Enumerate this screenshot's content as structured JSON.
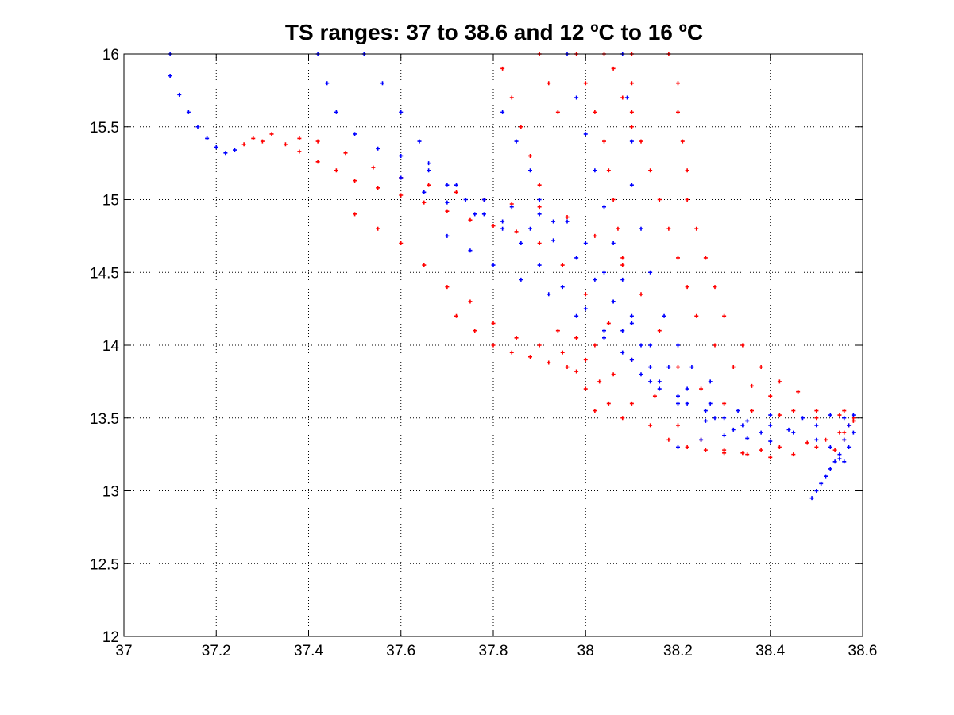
{
  "chart_data": {
    "type": "scatter",
    "title": "TS ranges: 37 to 38.6 and 12 ºC to 16 ºC",
    "xlabel": "",
    "ylabel": "",
    "xlim": [
      37,
      38.6
    ],
    "ylim": [
      12,
      16
    ],
    "grid": true,
    "x_ticks": [
      "37",
      "37.2",
      "37.4",
      "37.6",
      "37.8",
      "38",
      "38.2",
      "38.4",
      "38.6"
    ],
    "y_ticks": [
      "12",
      "12.5",
      "13",
      "13.5",
      "14",
      "14.5",
      "15",
      "15.5",
      "16"
    ],
    "colors": {
      "red_series": "#ff0000",
      "blue_series": "#0000ff",
      "grid": "#000000"
    },
    "series": [
      {
        "color": "#ff0000",
        "marker": "+",
        "points": [
          [
            37.26,
            15.38
          ],
          [
            37.28,
            15.42
          ],
          [
            37.3,
            15.4
          ],
          [
            37.32,
            15.45
          ],
          [
            37.35,
            15.38
          ],
          [
            37.38,
            15.33
          ],
          [
            37.42,
            15.26
          ],
          [
            37.46,
            15.2
          ],
          [
            37.5,
            15.13
          ],
          [
            37.55,
            15.08
          ],
          [
            37.6,
            15.03
          ],
          [
            37.65,
            14.98
          ],
          [
            37.7,
            14.92
          ],
          [
            37.75,
            14.86
          ],
          [
            37.8,
            14.82
          ],
          [
            37.85,
            14.78
          ],
          [
            37.9,
            14.7
          ],
          [
            37.95,
            14.55
          ],
          [
            38.0,
            14.35
          ],
          [
            38.05,
            14.15
          ],
          [
            38.1,
            13.9
          ],
          [
            38.15,
            13.65
          ],
          [
            38.2,
            13.45
          ],
          [
            38.25,
            13.35
          ],
          [
            38.3,
            13.28
          ],
          [
            38.35,
            13.25
          ],
          [
            38.4,
            13.23
          ],
          [
            38.45,
            13.25
          ],
          [
            38.5,
            13.3
          ],
          [
            38.55,
            13.4
          ],
          [
            38.58,
            13.5
          ],
          [
            37.38,
            15.42
          ],
          [
            37.42,
            15.4
          ],
          [
            37.48,
            15.32
          ],
          [
            37.54,
            15.22
          ],
          [
            37.6,
            15.15
          ],
          [
            37.66,
            15.1
          ],
          [
            37.72,
            15.05
          ],
          [
            37.78,
            15.0
          ],
          [
            37.84,
            14.97
          ],
          [
            37.9,
            14.95
          ],
          [
            37.96,
            14.88
          ],
          [
            38.02,
            14.75
          ],
          [
            38.08,
            14.55
          ],
          [
            38.12,
            14.35
          ],
          [
            38.16,
            14.1
          ],
          [
            38.2,
            13.85
          ],
          [
            38.25,
            13.7
          ],
          [
            38.3,
            13.6
          ],
          [
            38.36,
            13.55
          ],
          [
            38.42,
            13.52
          ],
          [
            38.5,
            13.5
          ],
          [
            38.56,
            13.55
          ],
          [
            37.5,
            14.9
          ],
          [
            37.55,
            14.8
          ],
          [
            37.6,
            14.7
          ],
          [
            37.65,
            14.55
          ],
          [
            37.7,
            14.4
          ],
          [
            37.75,
            14.3
          ],
          [
            37.8,
            14.15
          ],
          [
            37.85,
            14.05
          ],
          [
            37.9,
            14.0
          ],
          [
            37.95,
            13.95
          ],
          [
            38.0,
            13.9
          ],
          [
            38.03,
            13.75
          ],
          [
            38.05,
            13.6
          ],
          [
            38.08,
            13.5
          ],
          [
            37.72,
            14.2
          ],
          [
            37.76,
            14.1
          ],
          [
            37.8,
            14.0
          ],
          [
            37.84,
            13.95
          ],
          [
            37.88,
            13.92
          ],
          [
            37.92,
            13.88
          ],
          [
            37.96,
            13.85
          ],
          [
            37.98,
            13.82
          ],
          [
            38.0,
            13.7
          ],
          [
            38.02,
            13.55
          ],
          [
            38.1,
            16.0
          ],
          [
            38.1,
            15.8
          ],
          [
            38.1,
            15.6
          ],
          [
            38.12,
            15.4
          ],
          [
            38.14,
            15.2
          ],
          [
            38.16,
            15.0
          ],
          [
            38.18,
            14.8
          ],
          [
            38.2,
            14.6
          ],
          [
            38.22,
            14.4
          ],
          [
            38.24,
            14.2
          ],
          [
            38.28,
            14.0
          ],
          [
            38.32,
            13.85
          ],
          [
            38.36,
            13.72
          ],
          [
            38.4,
            13.65
          ],
          [
            38.18,
            16.0
          ],
          [
            38.2,
            15.8
          ],
          [
            38.2,
            15.6
          ],
          [
            38.21,
            15.4
          ],
          [
            38.22,
            15.2
          ],
          [
            38.22,
            15.0
          ],
          [
            38.24,
            14.8
          ],
          [
            38.26,
            14.6
          ],
          [
            38.28,
            14.4
          ],
          [
            38.3,
            14.2
          ],
          [
            38.34,
            14.0
          ],
          [
            38.38,
            13.85
          ],
          [
            38.42,
            13.75
          ],
          [
            38.46,
            13.68
          ],
          [
            37.98,
            16.0
          ],
          [
            38.0,
            15.8
          ],
          [
            38.02,
            15.6
          ],
          [
            38.04,
            15.4
          ],
          [
            38.05,
            15.2
          ],
          [
            38.06,
            15.0
          ],
          [
            38.07,
            14.8
          ],
          [
            38.08,
            14.6
          ],
          [
            37.82,
            15.9
          ],
          [
            37.84,
            15.7
          ],
          [
            37.86,
            15.5
          ],
          [
            37.88,
            15.3
          ],
          [
            37.9,
            15.1
          ],
          [
            37.9,
            16.0
          ],
          [
            37.92,
            15.8
          ],
          [
            37.94,
            15.6
          ],
          [
            38.04,
            16.0
          ],
          [
            38.06,
            15.9
          ],
          [
            38.08,
            15.7
          ],
          [
            38.1,
            15.5
          ],
          [
            37.94,
            14.1
          ],
          [
            37.98,
            14.05
          ],
          [
            38.02,
            14.0
          ],
          [
            38.06,
            13.8
          ],
          [
            38.1,
            13.6
          ],
          [
            38.14,
            13.45
          ],
          [
            38.18,
            13.35
          ],
          [
            38.22,
            13.3
          ],
          [
            38.26,
            13.28
          ],
          [
            38.3,
            13.26
          ],
          [
            38.34,
            13.26
          ],
          [
            38.38,
            13.28
          ],
          [
            38.42,
            13.3
          ],
          [
            38.48,
            13.33
          ],
          [
            38.52,
            13.35
          ],
          [
            38.56,
            13.4
          ],
          [
            38.58,
            13.48
          ],
          [
            38.45,
            13.55
          ],
          [
            38.5,
            13.55
          ],
          [
            38.55,
            13.52
          ],
          [
            38.57,
            13.45
          ],
          [
            38.56,
            13.35
          ],
          [
            38.54,
            13.28
          ]
        ]
      },
      {
        "color": "#0000ff",
        "marker": "+",
        "points": [
          [
            37.1,
            16.0
          ],
          [
            37.1,
            15.85
          ],
          [
            37.12,
            15.72
          ],
          [
            37.14,
            15.6
          ],
          [
            37.16,
            15.5
          ],
          [
            37.18,
            15.42
          ],
          [
            37.2,
            15.36
          ],
          [
            37.22,
            15.32
          ],
          [
            37.24,
            15.34
          ],
          [
            37.42,
            16.0
          ],
          [
            37.44,
            15.8
          ],
          [
            37.46,
            15.6
          ],
          [
            37.5,
            15.45
          ],
          [
            37.55,
            15.35
          ],
          [
            37.6,
            15.3
          ],
          [
            37.52,
            16.0
          ],
          [
            37.56,
            15.8
          ],
          [
            37.6,
            15.6
          ],
          [
            37.64,
            15.4
          ],
          [
            37.66,
            15.25
          ],
          [
            37.7,
            15.1
          ],
          [
            37.74,
            15.0
          ],
          [
            37.78,
            14.9
          ],
          [
            37.82,
            14.8
          ],
          [
            37.86,
            14.7
          ],
          [
            37.9,
            14.55
          ],
          [
            37.95,
            14.4
          ],
          [
            38.0,
            14.25
          ],
          [
            38.04,
            14.1
          ],
          [
            38.08,
            13.95
          ],
          [
            38.12,
            13.8
          ],
          [
            38.16,
            13.7
          ],
          [
            38.2,
            13.6
          ],
          [
            38.26,
            13.48
          ],
          [
            38.32,
            13.42
          ],
          [
            38.38,
            13.4
          ],
          [
            38.44,
            13.42
          ],
          [
            38.5,
            13.45
          ],
          [
            38.56,
            13.5
          ],
          [
            37.6,
            15.15
          ],
          [
            37.65,
            15.05
          ],
          [
            37.7,
            14.98
          ],
          [
            37.76,
            14.9
          ],
          [
            37.82,
            14.85
          ],
          [
            37.88,
            14.8
          ],
          [
            37.93,
            14.72
          ],
          [
            37.98,
            14.6
          ],
          [
            38.02,
            14.45
          ],
          [
            38.06,
            14.3
          ],
          [
            38.1,
            14.15
          ],
          [
            38.14,
            14.0
          ],
          [
            38.18,
            13.85
          ],
          [
            38.22,
            13.7
          ],
          [
            38.27,
            13.6
          ],
          [
            38.33,
            13.55
          ],
          [
            38.4,
            13.52
          ],
          [
            38.47,
            13.5
          ],
          [
            38.53,
            13.52
          ],
          [
            37.66,
            15.2
          ],
          [
            37.72,
            15.1
          ],
          [
            37.78,
            15.0
          ],
          [
            37.84,
            14.95
          ],
          [
            37.9,
            14.9
          ],
          [
            37.96,
            14.85
          ],
          [
            38.0,
            14.7
          ],
          [
            38.04,
            14.5
          ],
          [
            38.06,
            14.3
          ],
          [
            38.08,
            14.1
          ],
          [
            38.1,
            13.9
          ],
          [
            38.14,
            13.75
          ],
          [
            38.2,
            13.65
          ],
          [
            38.26,
            13.55
          ],
          [
            37.82,
            15.6
          ],
          [
            37.85,
            15.4
          ],
          [
            37.88,
            15.2
          ],
          [
            37.9,
            15.0
          ],
          [
            37.93,
            14.85
          ],
          [
            37.96,
            16.0
          ],
          [
            37.98,
            15.7
          ],
          [
            38.0,
            15.45
          ],
          [
            38.02,
            15.2
          ],
          [
            38.04,
            14.95
          ],
          [
            38.06,
            14.7
          ],
          [
            38.08,
            14.45
          ],
          [
            38.1,
            14.2
          ],
          [
            38.12,
            14.0
          ],
          [
            38.14,
            13.85
          ],
          [
            38.08,
            16.0
          ],
          [
            38.09,
            15.7
          ],
          [
            38.1,
            15.4
          ],
          [
            38.1,
            15.1
          ],
          [
            38.12,
            14.8
          ],
          [
            38.14,
            14.5
          ],
          [
            38.17,
            14.2
          ],
          [
            38.2,
            14.0
          ],
          [
            38.23,
            13.85
          ],
          [
            38.27,
            13.75
          ],
          [
            37.7,
            14.75
          ],
          [
            37.75,
            14.65
          ],
          [
            37.8,
            14.55
          ],
          [
            37.86,
            14.45
          ],
          [
            37.92,
            14.35
          ],
          [
            37.98,
            14.2
          ],
          [
            38.04,
            14.05
          ],
          [
            38.1,
            13.9
          ],
          [
            38.16,
            13.75
          ],
          [
            38.22,
            13.6
          ],
          [
            38.28,
            13.5
          ],
          [
            38.34,
            13.45
          ],
          [
            38.3,
            13.5
          ],
          [
            38.35,
            13.48
          ],
          [
            38.4,
            13.45
          ],
          [
            38.45,
            13.4
          ],
          [
            38.5,
            13.35
          ],
          [
            38.53,
            13.3
          ],
          [
            38.55,
            13.25
          ],
          [
            38.56,
            13.35
          ],
          [
            38.57,
            13.45
          ],
          [
            38.58,
            13.52
          ],
          [
            38.49,
            12.95
          ],
          [
            38.5,
            13.0
          ],
          [
            38.51,
            13.05
          ],
          [
            38.52,
            13.1
          ],
          [
            38.53,
            13.15
          ],
          [
            38.54,
            13.2
          ],
          [
            38.55,
            13.22
          ],
          [
            38.56,
            13.2
          ],
          [
            38.57,
            13.3
          ],
          [
            38.58,
            13.4
          ],
          [
            38.2,
            13.3
          ],
          [
            38.25,
            13.35
          ],
          [
            38.3,
            13.38
          ],
          [
            38.35,
            13.36
          ],
          [
            38.4,
            13.34
          ]
        ]
      }
    ]
  }
}
